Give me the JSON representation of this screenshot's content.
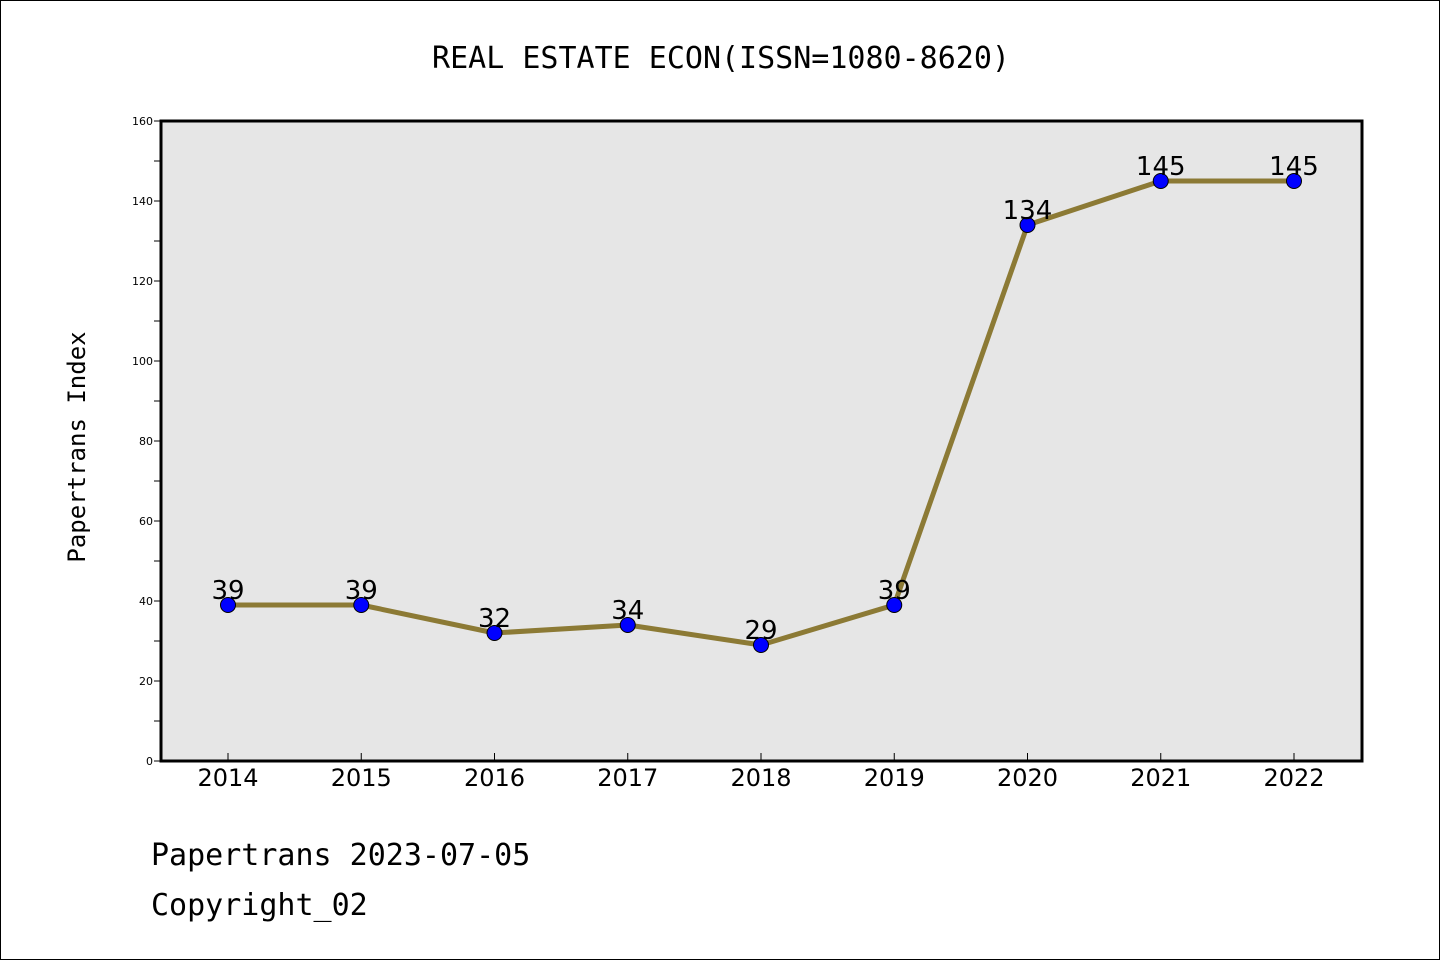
{
  "chart_data": {
    "type": "line",
    "title": "REAL ESTATE ECON(ISSN=1080-8620)",
    "xlabel": "",
    "ylabel": "Papertrans Index",
    "categories": [
      "2014",
      "2015",
      "2016",
      "2017",
      "2018",
      "2019",
      "2020",
      "2021",
      "2022"
    ],
    "series": [
      {
        "values": [
          39,
          39,
          32,
          34,
          29,
          39,
          134,
          145,
          145
        ]
      }
    ],
    "data_labels": [
      "39",
      "39",
      "32",
      "34",
      "29",
      "39",
      "134",
      "145",
      "145"
    ],
    "ylim": [
      0,
      160
    ],
    "yticks": [
      0,
      20,
      40,
      60,
      80,
      100,
      120,
      140,
      160
    ],
    "grid": false,
    "line_color": "#8c7a35",
    "marker_color": "#0000ff",
    "plot_background": "#e6e6e6"
  },
  "footer": {
    "line1": "Papertrans 2023-07-05",
    "line2": "Copyright_02"
  }
}
